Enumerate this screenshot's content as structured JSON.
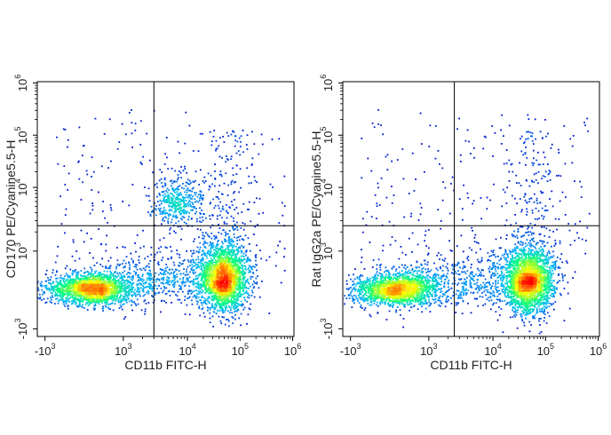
{
  "chart_data": [
    {
      "type": "scatter",
      "subtype": "flow-cytometry-pseudocolor-density",
      "xlabel": "CD11b FITC-H",
      "ylabel": "CD170 PE/Cyanine5.5-H",
      "x_scale": "biexponential",
      "y_scale": "biexponential",
      "xlim": [
        -1000,
        1000000
      ],
      "ylim": [
        -1000,
        1000000
      ],
      "x_ticks": [
        {
          "base": "-10",
          "exp": "3",
          "value": -1000
        },
        {
          "base": "10",
          "exp": "3",
          "value": 1000
        },
        {
          "base": "10",
          "exp": "4",
          "value": 10000
        },
        {
          "base": "10",
          "exp": "5",
          "value": 100000
        },
        {
          "base": "10",
          "exp": "6",
          "value": 1000000
        }
      ],
      "y_ticks": [
        {
          "base": "-10",
          "exp": "3",
          "value": -1000
        },
        {
          "base": "10",
          "exp": "3",
          "value": 1000
        },
        {
          "base": "10",
          "exp": "4",
          "value": 10000
        },
        {
          "base": "10",
          "exp": "5",
          "value": 100000
        },
        {
          "base": "10",
          "exp": "6",
          "value": 1000000
        }
      ],
      "gate_x": 3000,
      "gate_y": 2500,
      "populations": [
        {
          "x_center": 400,
          "y_center": 300,
          "density": "high",
          "shape": "horizontal-ellipse"
        },
        {
          "x_center": 50000,
          "y_center": 500,
          "density": "very-high",
          "shape": "vertical-ellipse"
        },
        {
          "x_center": 7000,
          "y_center": 6000,
          "density": "medium",
          "shape": "diffuse-cluster"
        }
      ],
      "color_scale": [
        "#0000c8",
        "#00b4ff",
        "#00ff80",
        "#ffff00",
        "#ff0000"
      ],
      "grid": false,
      "legend": "none"
    },
    {
      "type": "scatter",
      "subtype": "flow-cytometry-pseudocolor-density",
      "xlabel": "CD11b FITC-H",
      "ylabel": "Rat IgG2a PE/Cyanine5.5-H",
      "x_scale": "biexponential",
      "y_scale": "biexponential",
      "xlim": [
        -1000,
        1000000
      ],
      "ylim": [
        -1000,
        1000000
      ],
      "x_ticks": [
        {
          "base": "-10",
          "exp": "3",
          "value": -1000
        },
        {
          "base": "10",
          "exp": "3",
          "value": 1000
        },
        {
          "base": "10",
          "exp": "4",
          "value": 10000
        },
        {
          "base": "10",
          "exp": "5",
          "value": 100000
        },
        {
          "base": "10",
          "exp": "6",
          "value": 1000000
        }
      ],
      "y_ticks": [
        {
          "base": "-10",
          "exp": "3",
          "value": -1000
        },
        {
          "base": "10",
          "exp": "3",
          "value": 1000
        },
        {
          "base": "10",
          "exp": "4",
          "value": 10000
        },
        {
          "base": "10",
          "exp": "5",
          "value": 100000
        },
        {
          "base": "10",
          "exp": "6",
          "value": 1000000
        }
      ],
      "gate_x": 2500,
      "gate_y": 2500,
      "populations": [
        {
          "x_center": 400,
          "y_center": 300,
          "density": "high",
          "shape": "horizontal-ellipse"
        },
        {
          "x_center": 50000,
          "y_center": 450,
          "density": "very-high",
          "shape": "vertical-ellipse"
        }
      ],
      "color_scale": [
        "#0000c8",
        "#00b4ff",
        "#00ff80",
        "#ffff00",
        "#ff0000"
      ],
      "grid": false,
      "legend": "none"
    }
  ]
}
